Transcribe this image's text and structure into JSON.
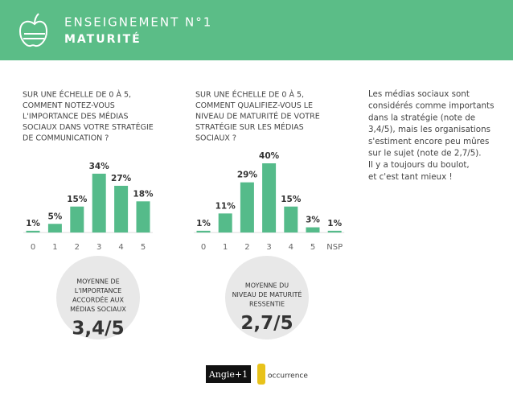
{
  "header": {
    "kicker": "ENSEIGNEMENT N°1",
    "title": "MATURITÉ"
  },
  "chart_data": [
    {
      "type": "bar",
      "title_lines": [
        "SUR UNE ÉCHELLE DE 0 À 5,",
        "COMMENT NOTEZ-VOUS",
        "L'IMPORTANCE DES MÉDIAS",
        "SOCIAUX DANS VOTRE STRATÉGIE",
        "DE COMMUNICATION ?"
      ],
      "categories": [
        "0",
        "1",
        "2",
        "3",
        "4",
        "5"
      ],
      "values": [
        1,
        5,
        15,
        34,
        27,
        18
      ],
      "value_labels": [
        "1%",
        "5%",
        "15%",
        "34%",
        "27%",
        "18%"
      ],
      "color": "#55bb8a"
    },
    {
      "type": "bar",
      "title_lines": [
        "SUR UNE ÉCHELLE DE 0 À 5,",
        "COMMENT QUALIFIEZ-VOUS LE",
        "NIVEAU DE MATURITÉ DE VOTRE",
        "STRATÉGIE SUR LES MÉDIAS",
        "SOCIAUX ?"
      ],
      "categories": [
        "0",
        "1",
        "2",
        "3",
        "4",
        "5",
        "NSP"
      ],
      "values": [
        1,
        11,
        29,
        40,
        15,
        3,
        1
      ],
      "value_labels": [
        "1%",
        "11%",
        "29%",
        "40%",
        "15%",
        "3%",
        "1%"
      ],
      "color": "#55bb8a"
    }
  ],
  "note_lines": [
    "Les médias sociaux sont",
    "considérés comme importants",
    "dans la stratégie (note de",
    "3,4/5), mais les organisations",
    "s'estiment encore peu mûres",
    "sur le sujet (note de 2,7/5).",
    "Il y a toujours du boulot,",
    "et c'est tant mieux !"
  ],
  "averages": [
    {
      "lines": [
        "MOYENNE DE",
        "L'IMPORTANCE",
        "ACCORDÉE AUX",
        "MÉDIAS SOCIAUX"
      ],
      "value": "3,4/5"
    },
    {
      "lines": [
        "MOYENNE DU",
        "NIVEAU DE MATURITÉ",
        "RESSENTIE"
      ],
      "value": "2,7/5"
    }
  ],
  "logos": [
    "Angie+1",
    "occurrence"
  ]
}
